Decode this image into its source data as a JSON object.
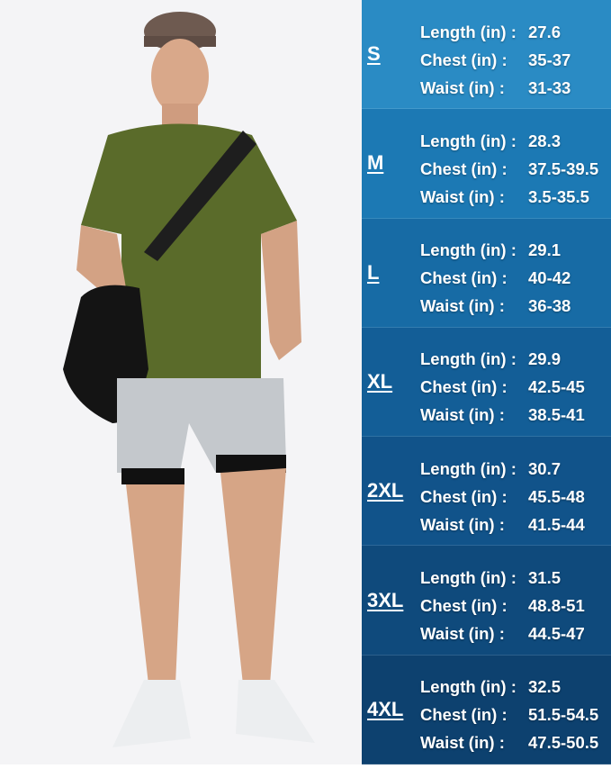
{
  "colors": {
    "photo_bg": "#f4f4f6",
    "shirt": "#5a6b2a",
    "shorts": "#c4c8cc",
    "sizes": [
      "#2a8bc4",
      "#1c79b4",
      "#176ba5",
      "#135e97",
      "#11538a",
      "#0f4a7c",
      "#0d416f"
    ]
  },
  "size_chart": [
    {
      "size": "S",
      "length_label": "Length (in) :",
      "length": "27.6",
      "chest_label": "Chest (in) :",
      "chest": "35-37",
      "waist_label": "Waist (in) :",
      "waist": "31-33"
    },
    {
      "size": "M",
      "length_label": "Length (in) :",
      "length": "28.3",
      "chest_label": "Chest (in) :",
      "chest": "37.5-39.5",
      "waist_label": "Waist (in) :",
      "waist": "3.5-35.5"
    },
    {
      "size": "L",
      "length_label": "Length (in) :",
      "length": "29.1",
      "chest_label": "Chest (in) :",
      "chest": "40-42",
      "waist_label": "Waist (in) :",
      "waist": "36-38"
    },
    {
      "size": "XL",
      "length_label": "Length (in) :",
      "length": "29.9",
      "chest_label": "Chest (in) :",
      "chest": "42.5-45",
      "waist_label": "Waist (in) :",
      "waist": "38.5-41"
    },
    {
      "size": "2XL",
      "length_label": "Length (in) :",
      "length": "30.7",
      "chest_label": "Chest (in) :",
      "chest": "45.5-48",
      "waist_label": "Waist (in) :",
      "waist": "41.5-44"
    },
    {
      "size": "3XL",
      "length_label": "Length (in) :",
      "length": "31.5",
      "chest_label": "Chest (in) :",
      "chest": "48.8-51",
      "waist_label": "Waist (in) :",
      "waist": "44.5-47"
    },
    {
      "size": "4XL",
      "length_label": "Length (in) :",
      "length": "32.5",
      "chest_label": "Chest (in) :",
      "chest": "51.5-54.5",
      "waist_label": "Waist (in) :",
      "waist": "47.5-50.5"
    }
  ]
}
